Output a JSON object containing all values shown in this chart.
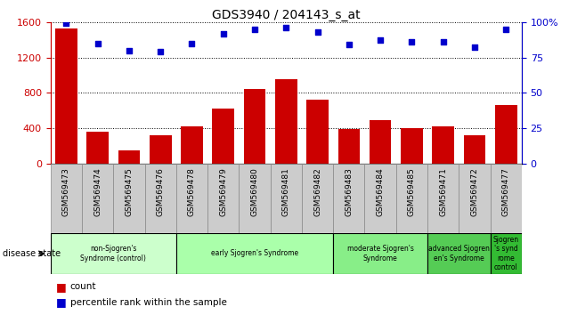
{
  "title": "GDS3940 / 204143_s_at",
  "samples": [
    "GSM569473",
    "GSM569474",
    "GSM569475",
    "GSM569476",
    "GSM569478",
    "GSM569479",
    "GSM569480",
    "GSM569481",
    "GSM569482",
    "GSM569483",
    "GSM569484",
    "GSM569485",
    "GSM569471",
    "GSM569472",
    "GSM569477"
  ],
  "counts": [
    1530,
    360,
    155,
    320,
    420,
    620,
    840,
    950,
    720,
    390,
    490,
    400,
    420,
    320,
    660
  ],
  "percentiles": [
    99,
    85,
    80,
    79,
    85,
    92,
    95,
    96,
    93,
    84,
    87,
    86,
    86,
    82,
    95
  ],
  "bar_color": "#cc0000",
  "dot_color": "#0000cc",
  "ylim_left": [
    0,
    1600
  ],
  "ylim_right": [
    0,
    100
  ],
  "yticks_left": [
    0,
    400,
    800,
    1200,
    1600
  ],
  "yticks_right": [
    0,
    25,
    50,
    75,
    100
  ],
  "groups": [
    {
      "label": "non-Sjogren's\nSyndrome (control)",
      "start": 0,
      "end": 4,
      "color": "#ccffcc"
    },
    {
      "label": "early Sjogren's Syndrome",
      "start": 4,
      "end": 9,
      "color": "#aaffaa"
    },
    {
      "label": "moderate Sjogren's\nSyndrome",
      "start": 9,
      "end": 12,
      "color": "#88ee88"
    },
    {
      "label": "advanced Sjogren\nen's Syndrome",
      "start": 12,
      "end": 14,
      "color": "#55cc55"
    },
    {
      "label": "Sjogren\n's synd\nrome\ncontrol",
      "start": 14,
      "end": 15,
      "color": "#33bb33"
    }
  ],
  "disease_state_label": "disease state",
  "legend_count_label": "count",
  "legend_pct_label": "percentile rank within the sample",
  "tick_label_fontsize": 6.5,
  "title_fontsize": 10,
  "sample_box_color": "#cccccc",
  "sample_box_edge": "#888888"
}
